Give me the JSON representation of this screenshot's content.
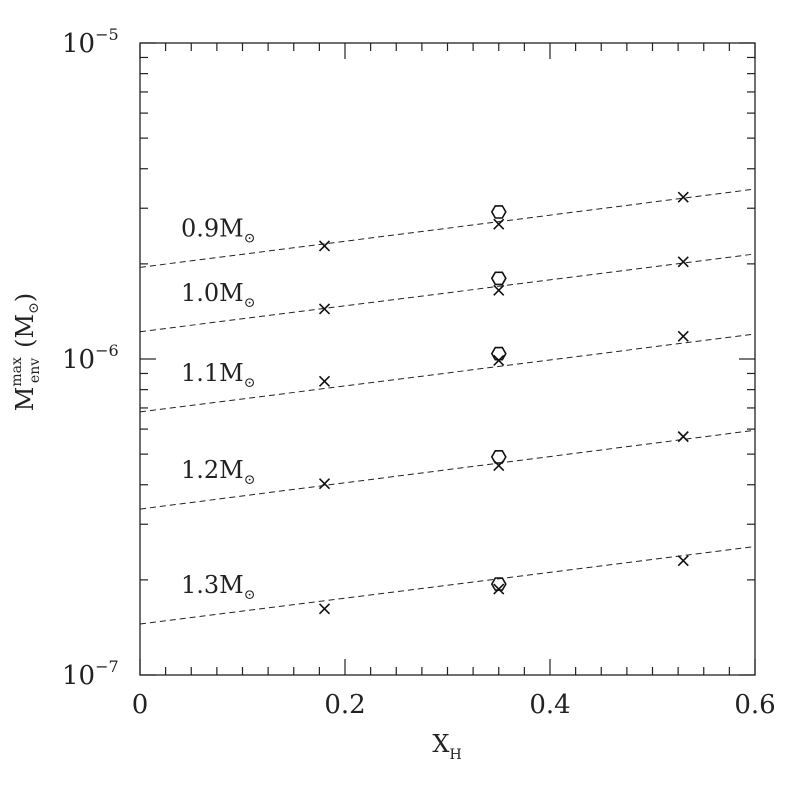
{
  "chart_data": {
    "type": "scatter",
    "xlabel": {
      "base": "X",
      "sub": "H"
    },
    "ylabel": {
      "base": "M",
      "sup": "max",
      "sub": "env",
      "unit_prefix": "(M",
      "unit_sym": "⊙",
      "unit_suffix": ")"
    },
    "xlim": [
      0,
      0.6
    ],
    "ylim": [
      1e-07,
      1e-05
    ],
    "yscale": "log",
    "x_ticks": [
      "0",
      "0.2",
      "0.4",
      "0.6"
    ],
    "y_ticks": [
      {
        "base": "10",
        "exp": "−5",
        "value": 1e-05
      },
      {
        "base": "10",
        "exp": "−6",
        "value": 1e-06
      },
      {
        "base": "10",
        "exp": "−7",
        "value": 1e-07
      }
    ],
    "series": [
      {
        "name": "0.9M",
        "sym": "⊙",
        "fit": [
          [
            0,
            1.95e-06
          ],
          [
            0.6,
            3.45e-06
          ]
        ],
        "crosses": [
          [
            0.18,
            2.28e-06
          ],
          [
            0.35,
            2.67e-06
          ],
          [
            0.53,
            3.25e-06
          ]
        ],
        "hexagons": [
          [
            0.35,
            2.92e-06
          ]
        ]
      },
      {
        "name": "1.0M",
        "sym": "⊙",
        "fit": [
          [
            0,
            1.22e-06
          ],
          [
            0.6,
            2.15e-06
          ]
        ],
        "crosses": [
          [
            0.18,
            1.44e-06
          ],
          [
            0.35,
            1.65e-06
          ],
          [
            0.53,
            2.03e-06
          ]
        ],
        "hexagons": [
          [
            0.35,
            1.8e-06
          ]
        ]
      },
      {
        "name": "1.1M",
        "sym": "⊙",
        "fit": [
          [
            0,
            6.8e-07
          ],
          [
            0.6,
            1.2e-06
          ]
        ],
        "crosses": [
          [
            0.18,
            8.5e-07
          ],
          [
            0.35,
            9.9e-07
          ],
          [
            0.53,
            1.18e-06
          ]
        ],
        "hexagons": [
          [
            0.35,
            1.04e-06
          ]
        ]
      },
      {
        "name": "1.2M",
        "sym": "⊙",
        "fit": [
          [
            0,
            3.35e-07
          ],
          [
            0.6,
            5.95e-07
          ]
        ],
        "crosses": [
          [
            0.18,
            4.03e-07
          ],
          [
            0.35,
            4.6e-07
          ],
          [
            0.53,
            5.68e-07
          ]
        ],
        "hexagons": [
          [
            0.35,
            4.9e-07
          ]
        ]
      },
      {
        "name": "1.3M",
        "sym": "⊙",
        "fit": [
          [
            0,
            1.45e-07
          ],
          [
            0.6,
            2.55e-07
          ]
        ],
        "crosses": [
          [
            0.18,
            1.62e-07
          ],
          [
            0.35,
            1.87e-07
          ],
          [
            0.53,
            2.3e-07
          ]
        ],
        "hexagons": [
          [
            0.35,
            1.94e-07
          ]
        ]
      }
    ],
    "grid": false,
    "legend": "none"
  }
}
